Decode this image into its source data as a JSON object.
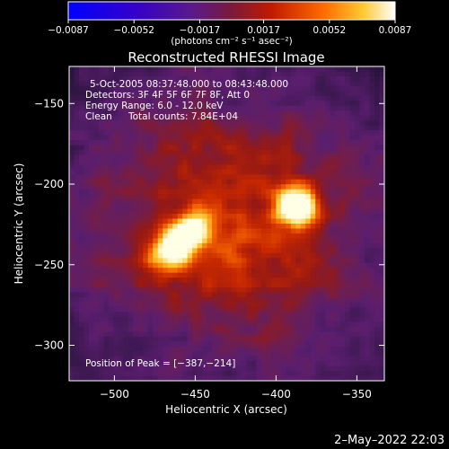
{
  "chart_data": {
    "type": "heatmap",
    "title": "Reconstructed RHESSI Image",
    "xlabel": "Heliocentric X (arcsec)",
    "ylabel": "Heliocentric Y (arcsec)",
    "xlim": [
      -528,
      -333
    ],
    "ylim": [
      -322,
      -127
    ],
    "x_ticks": [
      -500,
      -450,
      -400,
      -350
    ],
    "x_tick_labels": [
      "−500",
      "−450",
      "−400",
      "−350"
    ],
    "y_ticks": [
      -150,
      -200,
      -250,
      -300
    ],
    "y_tick_labels": [
      "−150",
      "−200",
      "−250",
      "−300"
    ],
    "colorbar": {
      "ticks": [
        -0.0087,
        -0.0052,
        -0.0017,
        0.0017,
        0.0052,
        0.0087
      ],
      "tick_labels": [
        "−0.0087",
        "−0.0052",
        "−0.0017",
        "0.0017",
        "0.0052",
        "0.0087"
      ],
      "units_label": "(photons cm⁻² s⁻¹ asec⁻²)",
      "range": [
        -0.0087,
        0.0087
      ]
    },
    "annotations": {
      "time_range": "5-Oct-2005 08:37:48.000 to 08:43:48.000",
      "detectors": "Detectors: 3F 4F 5F 6F 7F 8F, Att 0",
      "energy": "Energy Range: 6.0 - 12.0 keV",
      "clean": "Clean",
      "total_counts": "Total counts: 7.84E+04",
      "peak": "Position of Peak = [−387,−214]"
    },
    "peak_position": [
      -387,
      -214
    ],
    "sources": [
      {
        "x": -387,
        "y": -214,
        "relative_intensity": 1.0
      },
      {
        "x": -460,
        "y": -235,
        "relative_intensity": 0.92
      }
    ]
  },
  "footer": {
    "date": "2–May–2022 22:03"
  }
}
